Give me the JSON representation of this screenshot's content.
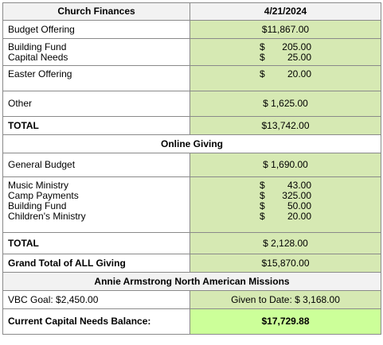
{
  "header": {
    "title": "Church Finances",
    "date": "4/21/2024"
  },
  "church": {
    "budget_offering": {
      "label": "Budget Offering",
      "value": "$11,867.00"
    },
    "building_capital": {
      "labels": [
        "Building Fund",
        "Capital Needs"
      ],
      "amounts": [
        {
          "cur": "$",
          "num": "205.00"
        },
        {
          "cur": "$",
          "num": "25.00"
        }
      ]
    },
    "easter": {
      "label": "Easter Offering",
      "cur": "$",
      "num": "20.00"
    },
    "other": {
      "label": "Other",
      "value": "$ 1,625.00"
    },
    "total": {
      "label": "TOTAL",
      "value": "$13,742.00"
    }
  },
  "online": {
    "title": "Online Giving",
    "general_budget": {
      "label": "General Budget",
      "value": "$ 1,690.00"
    },
    "designated": {
      "labels": [
        "Music Ministry",
        "Camp Payments",
        "Building Fund",
        "Children's Ministry"
      ],
      "amounts": [
        {
          "cur": "$",
          "num": "43.00"
        },
        {
          "cur": "$",
          "num": "325.00"
        },
        {
          "cur": "$",
          "num": "50.00"
        },
        {
          "cur": "$",
          "num": "20.00"
        }
      ]
    },
    "total": {
      "label": "TOTAL",
      "value": "$ 2,128.00"
    }
  },
  "grand_total": {
    "label": "Grand Total of ALL Giving",
    "value": "$15,870.00"
  },
  "missions": {
    "title": "Annie Armstrong North American Missions",
    "vbc_goal": "VBC Goal: $2,450.00",
    "given": "Given to Date: $ 3,168.00"
  },
  "capital_balance": {
    "label": "Current Capital Needs Balance:",
    "value": "$17,729.88"
  },
  "colors": {
    "cell_green": "#d6e9b3",
    "highlight": "#ccff99",
    "header_gray": "#f2f2f2"
  }
}
